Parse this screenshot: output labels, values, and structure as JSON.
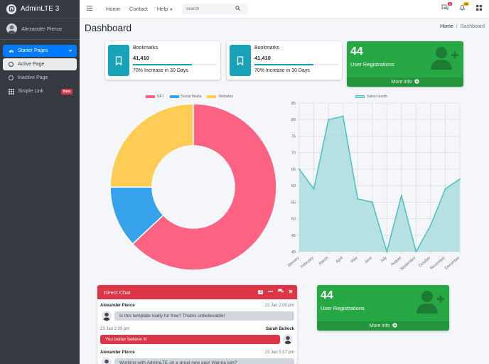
{
  "brand": {
    "name": "AdminLTE 3"
  },
  "user": {
    "name": "Alexander Pierce"
  },
  "sidebar": {
    "items": [
      {
        "label": "Starter Pages"
      },
      {
        "label": "Active Page"
      },
      {
        "label": "Inactive Page"
      },
      {
        "label": "Simple Link",
        "badge": "New"
      }
    ]
  },
  "topnav": {
    "links": [
      "Home",
      "Contact",
      "Help"
    ],
    "search_placeholder": "Search",
    "messages_count": "3",
    "notifications_count": "15"
  },
  "page": {
    "title": "Dashboard",
    "breadcrumb": [
      "Home",
      "/",
      "Dashboard"
    ]
  },
  "info_boxes": [
    {
      "label": "Bookmarks",
      "number": "41,410",
      "progress": 70,
      "description": "70% Increase in 30 Days"
    },
    {
      "label": "Bookmarks",
      "number": "41,410",
      "progress": 70,
      "description": "70% Increase in 30 Days"
    }
  ],
  "small_boxes": [
    {
      "number": "44",
      "label": "User Registrations",
      "footer": "More info"
    },
    {
      "number": "44",
      "label": "User Registrations",
      "footer": "More info"
    }
  ],
  "colors": {
    "nft": "#ff6384",
    "social_media": "#36a2eb",
    "websites": "#ffcd56",
    "sales_fill": "#afdfdf",
    "sales_line": "#4bc0c0",
    "success": "#28a745",
    "info": "#17a2b8",
    "danger": "#dc3545",
    "primary": "#007bff"
  },
  "chart_data": [
    {
      "type": "pie",
      "labels": [
        "NFT",
        "Social Media",
        "Websites"
      ],
      "values": [
        63,
        12,
        25
      ]
    },
    {
      "type": "area",
      "categories": [
        "January",
        "February",
        "March",
        "April",
        "May",
        "June",
        "July",
        "August",
        "September",
        "October",
        "November",
        "December"
      ],
      "series": [
        {
          "name": "Sales/ month",
          "values": [
            65,
            59,
            80,
            81,
            56,
            55,
            40,
            57,
            40,
            48,
            59,
            62
          ]
        }
      ],
      "ylim": [
        40,
        85
      ],
      "yticks": [
        40,
        45,
        50,
        55,
        60,
        65,
        70,
        75,
        80,
        85
      ],
      "grid": true,
      "legend": "top"
    }
  ],
  "chat": {
    "title": "Direct Chat",
    "count": "3",
    "messages": [
      {
        "name": "Alexander Pierce",
        "time": "23 Jan 2:00 pm",
        "text": "Is this template really for free? Thatxs unbelievable!",
        "side": "left"
      },
      {
        "name": "Sarah Bullock",
        "time": "23 Jan 2:05 pm",
        "text": "You better believe it!",
        "side": "right"
      },
      {
        "name": "Alexander Pierce",
        "time": "23 Jan 5:37 pm",
        "text": "Working with AdminLTE on a great new app! Wanna join?",
        "side": "left"
      }
    ]
  }
}
